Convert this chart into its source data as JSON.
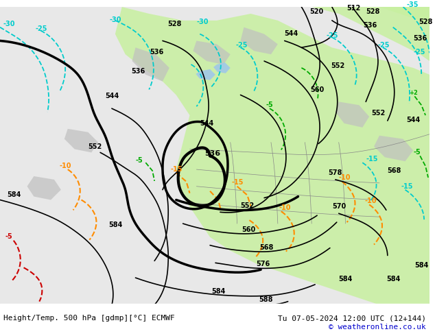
{
  "title_left": "Height/Temp. 500 hPa [gdmp][°C] ECMWF",
  "title_right": "Tu 07-05-2024 12:00 UTC (12+144)",
  "copyright": "© weatheronline.co.uk",
  "background_color": "#f0f0f0",
  "land_color": "#d8d8d8",
  "green_fill_color": "#c8f0a0",
  "fig_width": 6.34,
  "fig_height": 4.9,
  "dpi": 100
}
